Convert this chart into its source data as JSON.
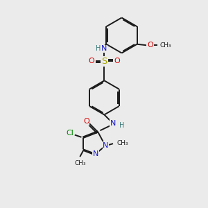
{
  "bg_color": "#ebebeb",
  "bond_color": "#1a1a1a",
  "bond_lw": 1.4,
  "dbo": 0.05,
  "N_color": "#1414c8",
  "O_color": "#d80000",
  "S_color": "#a8a800",
  "Cl_color": "#008800",
  "H_color": "#3a7a7a",
  "fs": 7.0,
  "fig_w": 3.0,
  "fig_h": 3.0,
  "dpi": 100,
  "xlim": [
    0,
    10
  ],
  "ylim": [
    0,
    10
  ]
}
